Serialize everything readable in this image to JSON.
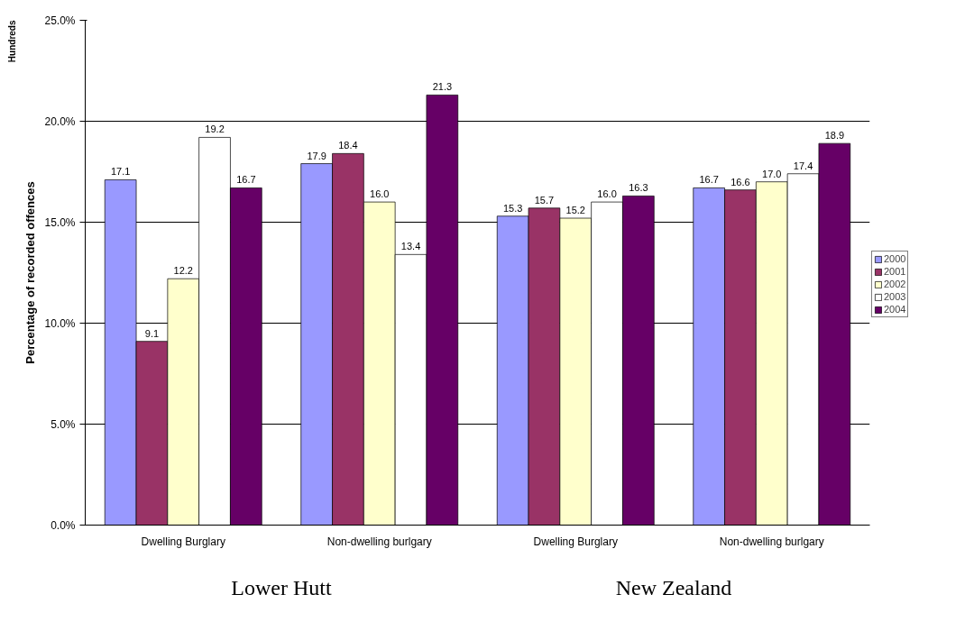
{
  "chart_data": {
    "type": "bar",
    "ylabel": "Percentage of recorded offences",
    "categories": [
      "Dwelling Burglary",
      "Non-dwelling burlgary",
      "Dwelling Burglary",
      "Non-dwelling burlgary"
    ],
    "series": [
      {
        "name": "2000",
        "color": "#9999ff",
        "values": [
          17.1,
          17.9,
          15.3,
          16.7
        ],
        "value_labels": [
          "17.1",
          "17.9",
          "15.3",
          "16.7"
        ]
      },
      {
        "name": "2001",
        "color": "#993366",
        "values": [
          9.1,
          18.4,
          15.7,
          16.6
        ],
        "value_labels": [
          "9.1",
          "18.4",
          "15.7",
          "16.6"
        ]
      },
      {
        "name": "2002",
        "color": "#ffffcc",
        "values": [
          12.2,
          16.0,
          15.2,
          17.0
        ],
        "value_labels": [
          "12.2",
          "16.0",
          "15.2",
          "17.0"
        ]
      },
      {
        "name": "2003",
        "color": "#ffffff",
        "values": [
          19.2,
          13.4,
          16.0,
          17.4
        ],
        "value_labels": [
          "19.2",
          "13.4",
          "16.0",
          "17.4"
        ]
      },
      {
        "name": "2004",
        "color": "#660066",
        "values": [
          16.7,
          21.3,
          16.3,
          18.9
        ],
        "value_labels": [
          "16.7",
          "21.3",
          "16.3",
          "18.9"
        ]
      }
    ],
    "ylim": [
      0,
      25
    ],
    "yticks": [
      {
        "value": 0,
        "label": "0.0%"
      },
      {
        "value": 5,
        "label": "5.0%"
      },
      {
        "value": 10,
        "label": "10.0%"
      },
      {
        "value": 15,
        "label": "15.0%"
      },
      {
        "value": 20,
        "label": "20.0%"
      },
      {
        "value": 25,
        "label": "25.0%"
      }
    ],
    "grid": "y",
    "legend": "right",
    "annotations": [
      "Hundreds",
      "Lower Hutt",
      "New Zealand"
    ]
  }
}
